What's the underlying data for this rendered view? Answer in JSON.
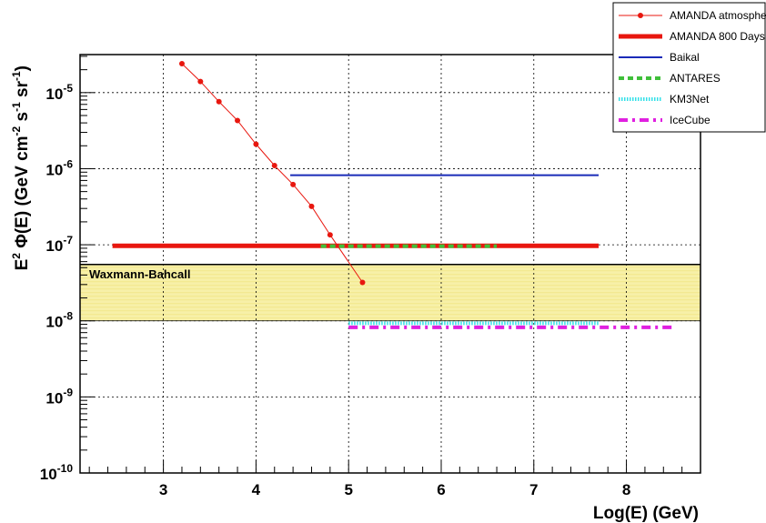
{
  "chart_data": {
    "type": "line",
    "xlabel": "Log(E) (GeV)",
    "ylabel_parts": [
      "E",
      "2",
      " Φ(E) (GeV cm",
      "-2",
      " s",
      "-1",
      " sr",
      "-1",
      ")"
    ],
    "xlim": [
      2.1,
      8.8
    ],
    "ylim_log10": [
      -10,
      -4.5
    ],
    "y_scale": "log",
    "grid": true,
    "legend_position": "top-right",
    "x_ticks": [
      3,
      4,
      5,
      6,
      7,
      8
    ],
    "x_tick_labels": [
      "3",
      "4",
      "5",
      "6",
      "7",
      "8"
    ],
    "y_ticks_log10": [
      -10,
      -9,
      -8,
      -7,
      -6,
      -5
    ],
    "y_tick_labels": [
      {
        "base": "10",
        "exp": "-10"
      },
      {
        "base": "10",
        "exp": "-9"
      },
      {
        "base": "10",
        "exp": "-8"
      },
      {
        "base": "10",
        "exp": "-7"
      },
      {
        "base": "10",
        "exp": "-6"
      },
      {
        "base": "10",
        "exp": "-5"
      }
    ],
    "annotation": {
      "text": "Waxmann-Bahcall",
      "band_y": [
        1e-08,
        5.5e-08
      ],
      "band_color": "#f7f0a8",
      "line_color": "#000000"
    },
    "series": [
      {
        "name": "AMANDA atmospheric",
        "style": "line-markers",
        "color": "#e8170f",
        "x": [
          3.2,
          3.4,
          3.6,
          3.8,
          4.0,
          4.2,
          4.4,
          4.6,
          4.8,
          5.15
        ],
        "y": [
          2.4e-05,
          1.4e-05,
          7.6e-06,
          4.3e-06,
          2.1e-06,
          1.1e-06,
          6.2e-07,
          3.2e-07,
          1.35e-07,
          3.2e-08
        ]
      },
      {
        "name": "AMANDA 800 Days",
        "style": "thick",
        "color": "#e8170f",
        "x": [
          2.45,
          7.7
        ],
        "y": [
          9.7e-08,
          9.7e-08
        ]
      },
      {
        "name": "Baikal",
        "style": "solid",
        "color": "#1a2bb8",
        "x": [
          4.37,
          7.7
        ],
        "y": [
          8.2e-07,
          8.2e-07
        ]
      },
      {
        "name": "ANTARES",
        "style": "dashed",
        "color": "#3fbf3a",
        "x": [
          4.7,
          6.6
        ],
        "y": [
          9.6e-08,
          9.6e-08
        ]
      },
      {
        "name": "KM3Net",
        "style": "dotted",
        "color": "#33e0e8",
        "x": [
          5.0,
          7.7
        ],
        "y": [
          9.3e-09,
          9.3e-09
        ]
      },
      {
        "name": "IceCube",
        "style": "dashdot",
        "color": "#e020e0",
        "x": [
          5.0,
          8.5
        ],
        "y": [
          8.2e-09,
          8.2e-09
        ]
      }
    ]
  }
}
